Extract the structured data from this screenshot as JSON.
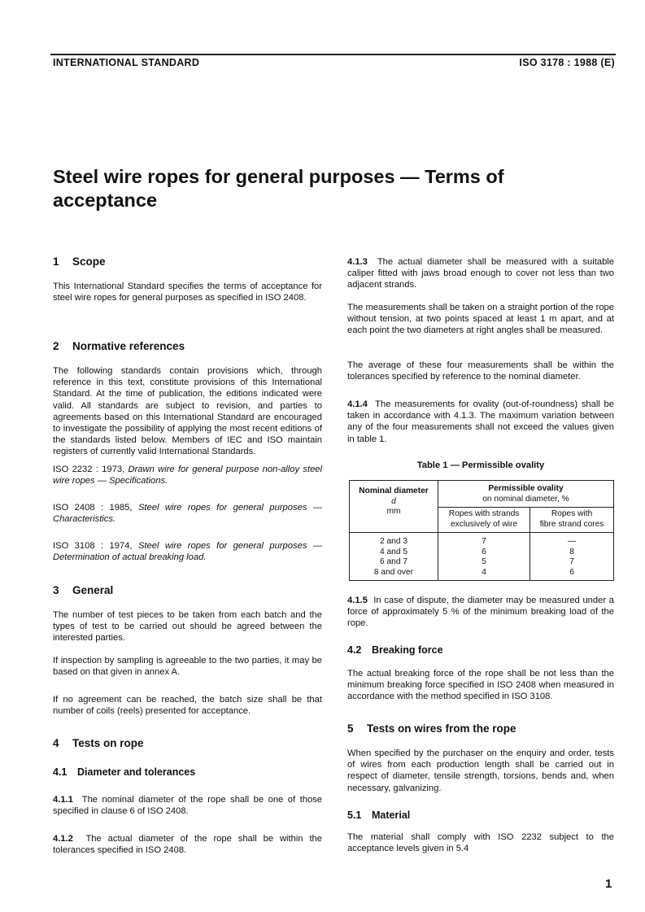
{
  "header": {
    "left": "INTERNATIONAL STANDARD",
    "right": "ISO 3178 : 1988 (E)"
  },
  "title": "Steel wire ropes for general purposes — Terms of acceptance",
  "left": {
    "s1": {
      "num": "1",
      "title": "Scope",
      "p1": "This International Standard specifies the terms of acceptance for steel wire ropes for general purposes as specified in ISO 2408."
    },
    "s2": {
      "num": "2",
      "title": "Normative references",
      "p1": "The following standards contain provisions which, through reference in this text, constitute provisions of this International Standard. At the time of publication, the editions indicated were valid. All standards are subject to revision, and parties to agreements based on this International Standard are encouraged to investigate the possibility of applying the most recent editions of the standards listed below. Members of IEC and ISO maintain registers of currently valid International Standards.",
      "refs": [
        {
          "id": "ISO 2232 : 1973,",
          "title": "Drawn wire for general purpose non-alloy steel wire ropes — Specifications."
        },
        {
          "id": "ISO 2408 : 1985,",
          "title": "Steel wire ropes for general purposes — Characteristics."
        },
        {
          "id": "ISO 3108 : 1974,",
          "title": "Steel wire ropes for general purposes — Determination of actual breaking load."
        }
      ]
    },
    "s3": {
      "num": "3",
      "title": "General",
      "p1": "The number of test pieces to be taken from each batch and the types of test to be carried out should be agreed between the interested parties.",
      "p2": "If inspection by sampling is agreeable to the two parties, it may be based on that given in annex A.",
      "p3": "If no agreement can be reached, the batch size shall be that number of coils (reels) presented for acceptance."
    },
    "s4": {
      "num": "4",
      "title": "Tests on rope"
    },
    "s41": {
      "num": "4.1",
      "title": "Diameter and tolerances"
    },
    "c411": {
      "num": "4.1.1",
      "text": "The nominal diameter of the rope shall be one of those specified in clause 6 of ISO 2408."
    },
    "c412": {
      "num": "4.1.2",
      "text": "The actual diameter of the rope shall be within the tolerances specified in ISO 2408."
    }
  },
  "right": {
    "c413": {
      "num": "4.1.3",
      "text": "The actual diameter shall be measured with a suitable caliper fitted with jaws broad enough to cover not less than two adjacent strands.",
      "p2": "The measurements shall be taken on a straight portion of the rope without tension, at two points spaced at least 1 m apart, and at each point the two diameters at right angles shall be measured.",
      "p3": "The average of these four measurements shall be within the tolerances specified by reference to the nominal diameter."
    },
    "c414": {
      "num": "4.1.4",
      "text": "The measurements for ovality (out-of-roundness) shall be taken in accordance with 4.1.3. The maximum variation between any of the four measurements shall not exceed the values given in table 1."
    },
    "table": {
      "caption": "Table 1 — Permissible ovality",
      "h_nominal": "Nominal diameter",
      "h_d": "d",
      "h_mm": "mm",
      "h_perm1": "Permissible ovality",
      "h_perm2": "on nominal diameter, %",
      "h_c1a": "Ropes with strands",
      "h_c1b": "exclusively of wire",
      "h_c2a": "Ropes with",
      "h_c2b": "fibre strand cores",
      "rows": [
        [
          "2 and 3",
          "7",
          "—"
        ],
        [
          "4 and 5",
          "6",
          "8"
        ],
        [
          "6 and 7",
          "5",
          "7"
        ],
        [
          "8 and over",
          "4",
          "6"
        ]
      ]
    },
    "c415": {
      "num": "4.1.5",
      "text": "In case of dispute, the diameter may be measured under a force of approximately 5 % of the minimum breaking load of the rope."
    },
    "s42": {
      "num": "4.2",
      "title": "Breaking force",
      "p1": "The actual breaking force of the rope shall be not less than the minimum breaking force specified in ISO 2408 when measured in accordance with the method specified in ISO 3108."
    },
    "s5": {
      "num": "5",
      "title": "Tests on wires from the rope",
      "p1": "When specified by the purchaser on the enquiry and order, tests of wires from each production length shall be carried out in respect of diameter, tensile strength, torsions, bends and, when necessary, galvanizing."
    },
    "s51": {
      "num": "5.1",
      "title": "Material",
      "p1": "The material shall comply with ISO 2232 subject to the acceptance levels given in 5.4"
    }
  },
  "page_number": "1"
}
